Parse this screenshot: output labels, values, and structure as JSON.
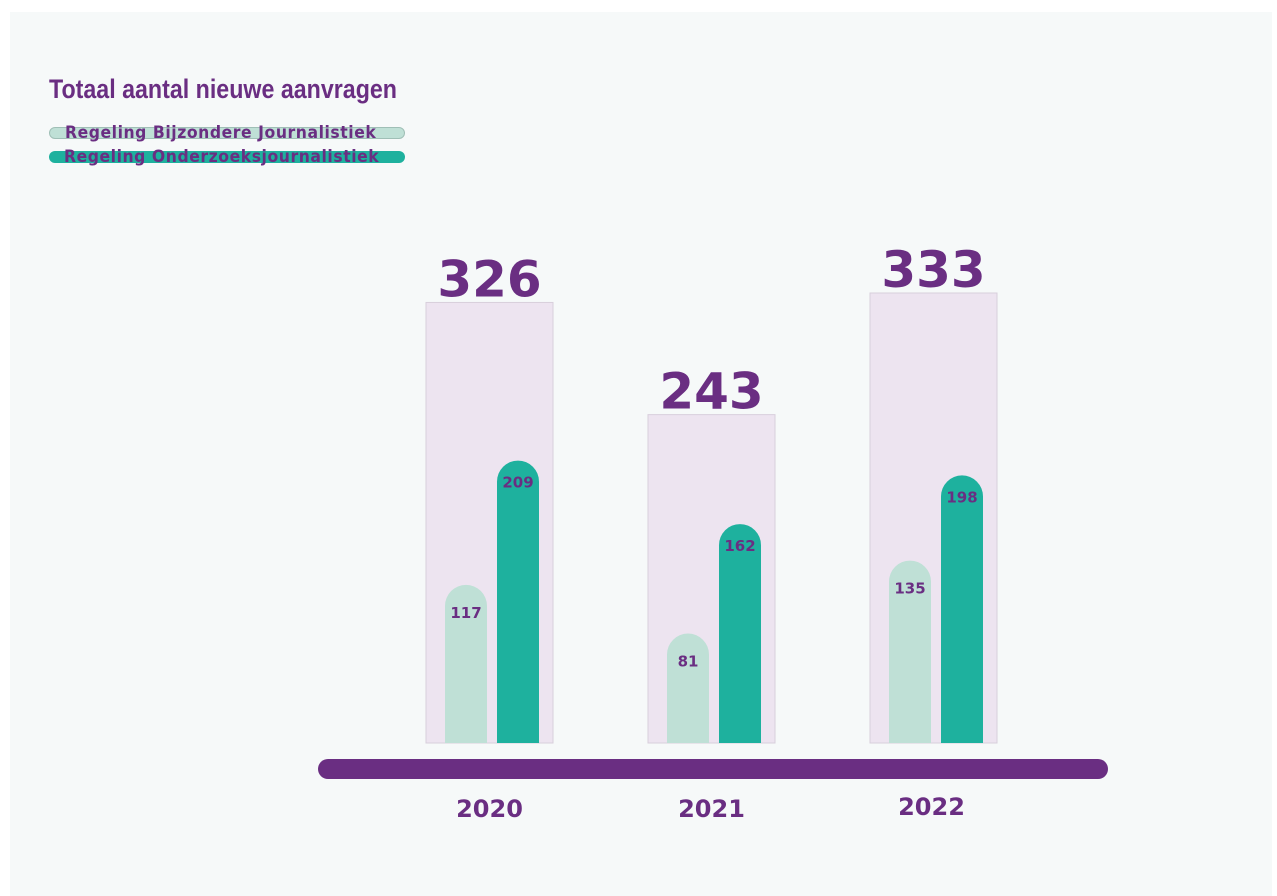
{
  "title": "Totaal aantal nieuwe aanvragen",
  "legend": [
    {
      "label": "Regeling Bijzondere Journalistiek",
      "color": "#bfe0d6"
    },
    {
      "label": "Regeling Onderzoeksjournalistiek",
      "color": "#1eb19e"
    }
  ],
  "colors": {
    "accent": "#6a2e82",
    "total_background": "#ede4f0",
    "page_background": "#f6f9f9"
  },
  "chart_data": {
    "type": "bar",
    "title": "Totaal aantal nieuwe aanvragen",
    "categories": [
      "2020",
      "2021",
      "2022"
    ],
    "totals": [
      326,
      243,
      333
    ],
    "series": [
      {
        "name": "Regeling Bijzondere Journalistiek",
        "values": [
          117,
          81,
          135
        ],
        "color": "#bfe0d6"
      },
      {
        "name": "Regeling Onderzoeksjournalistiek",
        "values": [
          209,
          162,
          198
        ],
        "color": "#1eb19e"
      }
    ],
    "ylim": [
      0,
      333
    ],
    "grid": false,
    "legend_position": "top-left",
    "xlabel": "",
    "ylabel": ""
  }
}
